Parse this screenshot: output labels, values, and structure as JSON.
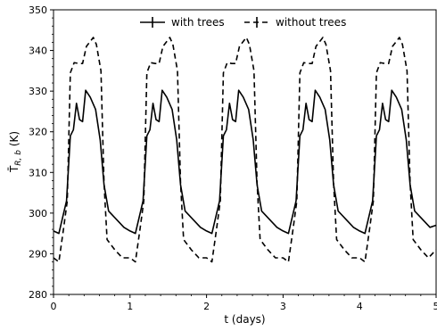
{
  "chart_data": {
    "type": "line",
    "xlabel": "t (days)",
    "ylabel": "T̄",
    "ylabel_sub": "R, b",
    "ylabel_unit": " (K)",
    "xlim": [
      0,
      5
    ],
    "ylim": [
      280,
      350
    ],
    "xticks": [
      0,
      1,
      2,
      3,
      4,
      5
    ],
    "yticks": [
      280,
      290,
      300,
      310,
      320,
      330,
      340,
      350
    ],
    "grid": false,
    "legend_position": "top-center",
    "series": [
      {
        "name": "with trees",
        "style": "solid",
        "color": "#000000",
        "period": 1,
        "cycles": 5,
        "points": [
          [
            0.0,
            295.6
          ],
          [
            0.07,
            295.0
          ],
          [
            0.17,
            303.0
          ],
          [
            0.22,
            319.0
          ],
          [
            0.26,
            320.5
          ],
          [
            0.3,
            327.0
          ],
          [
            0.34,
            323.0
          ],
          [
            0.38,
            322.5
          ],
          [
            0.42,
            330.2
          ],
          [
            0.48,
            328.5
          ],
          [
            0.55,
            325.5
          ],
          [
            0.61,
            318.0
          ],
          [
            0.66,
            307.0
          ],
          [
            0.72,
            300.5
          ],
          [
            0.82,
            298.5
          ],
          [
            0.92,
            296.5
          ],
          [
            1.0,
            295.6
          ]
        ],
        "end_value": 297.0
      },
      {
        "name": "without trees",
        "style": "dashed",
        "color": "#000000",
        "period": 1,
        "cycles": 5,
        "points": [
          [
            0.0,
            289.0
          ],
          [
            0.07,
            288.0
          ],
          [
            0.13,
            296.0
          ],
          [
            0.18,
            303.0
          ],
          [
            0.22,
            334.5
          ],
          [
            0.27,
            337.0
          ],
          [
            0.33,
            336.8
          ],
          [
            0.38,
            336.8
          ],
          [
            0.43,
            341.0
          ],
          [
            0.52,
            343.2
          ],
          [
            0.56,
            341.5
          ],
          [
            0.62,
            335.0
          ],
          [
            0.66,
            307.5
          ],
          [
            0.7,
            293.5
          ],
          [
            0.8,
            291.0
          ],
          [
            0.9,
            289.0
          ],
          [
            1.0,
            289.0
          ]
        ],
        "end_value": 291.0
      }
    ]
  }
}
